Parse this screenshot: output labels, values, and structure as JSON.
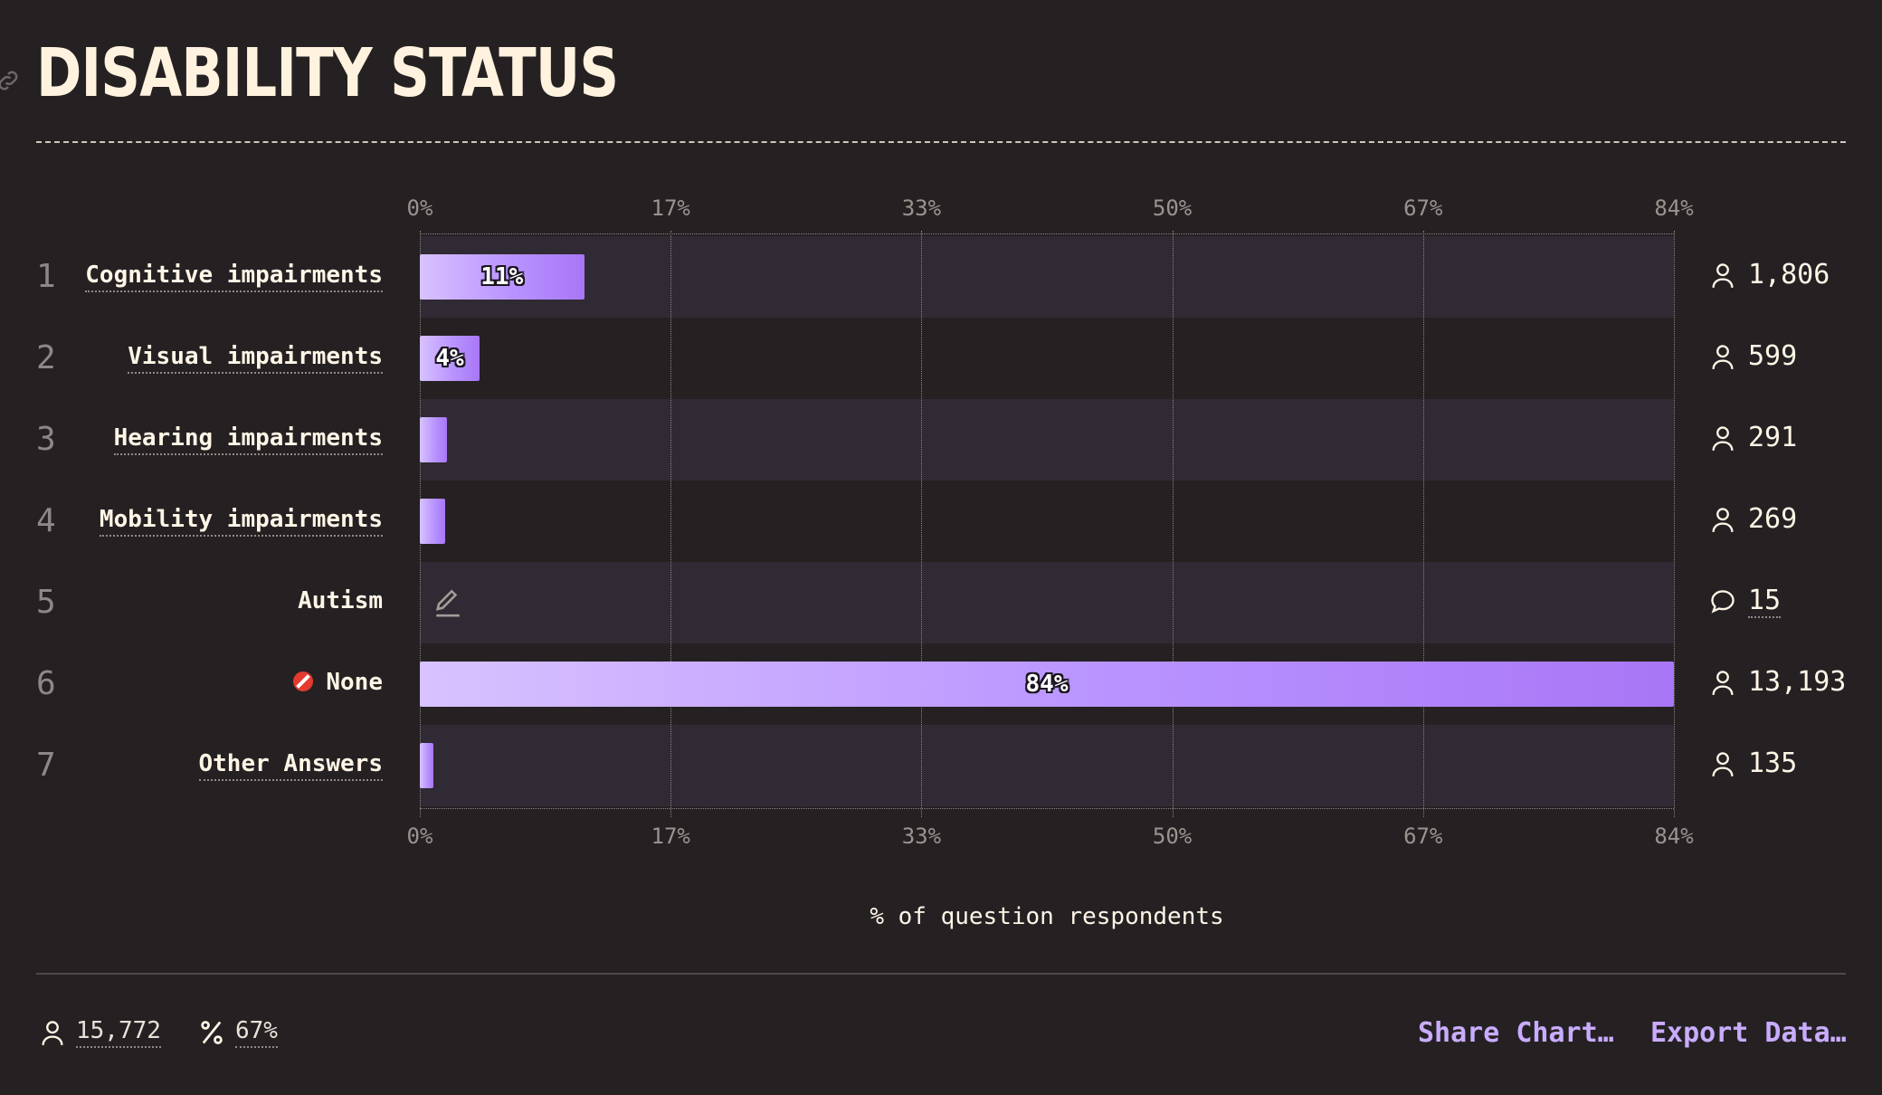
{
  "page": {
    "title": "DISABILITY STATUS"
  },
  "chart_data": {
    "type": "bar",
    "orientation": "horizontal",
    "xlim": [
      0,
      84
    ],
    "ticks": [
      "0%",
      "17%",
      "33%",
      "50%",
      "67%",
      "84%"
    ],
    "xlabel": "% of question respondents",
    "rows": [
      {
        "rank": "1",
        "label": "Cognitive impairments",
        "value": 11,
        "value_label": "11%",
        "count": "1,806",
        "count_icon": "person-icon"
      },
      {
        "rank": "2",
        "label": "Visual impairments",
        "value": 4,
        "value_label": "4%",
        "count": "599",
        "count_icon": "person-icon"
      },
      {
        "rank": "3",
        "label": "Hearing impairments",
        "value": 1.8,
        "value_label": "",
        "count": "291",
        "count_icon": "person-icon"
      },
      {
        "rank": "4",
        "label": "Mobility impairments",
        "value": 1.7,
        "value_label": "",
        "count": "269",
        "count_icon": "person-icon"
      },
      {
        "rank": "5",
        "label": "Autism",
        "value": null,
        "value_label": "",
        "count": "15",
        "count_icon": "comment-icon",
        "bar_icon": "pencil-icon"
      },
      {
        "rank": "6",
        "label": "None",
        "label_icon": "prohibited-emoji-icon",
        "value": 84,
        "value_label": "84%",
        "count": "13,193",
        "count_icon": "person-icon"
      },
      {
        "rank": "7",
        "label": "Other Answers",
        "value": 0.9,
        "value_label": "",
        "count": "135",
        "count_icon": "person-icon"
      }
    ],
    "colors": {
      "bar_start": "#d8c2ff",
      "bar_end": "#a876f6",
      "row_band": "#2f2a33",
      "background": "#252123"
    }
  },
  "footer": {
    "respondents": "15,772",
    "percentage": "67%",
    "share_label": "Share Chart…",
    "export_label": "Export Data…"
  }
}
